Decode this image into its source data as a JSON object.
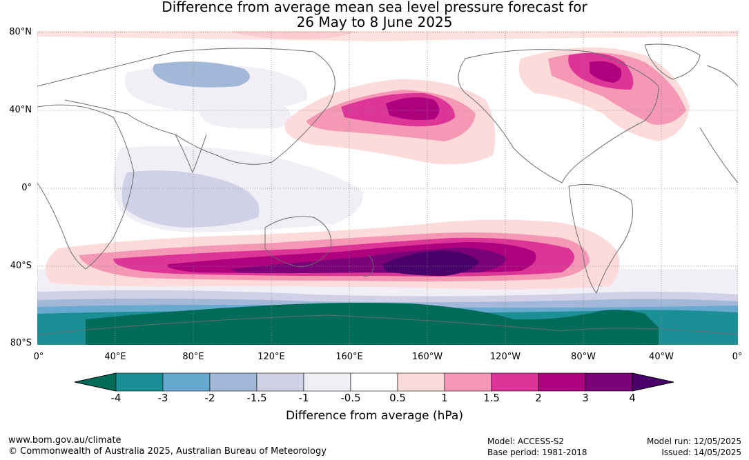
{
  "title": {
    "line1": "Difference from average mean sea level pressure forecast for",
    "line2": "26 May to 8 June 2025"
  },
  "map": {
    "lat_labels": [
      "80°N",
      "40°N",
      "0°",
      "40°S",
      "80°S"
    ],
    "lon_labels": [
      "0°",
      "40°E",
      "80°E",
      "120°E",
      "160°E",
      "160°W",
      "120°W",
      "80°W",
      "40°W",
      "0°"
    ]
  },
  "colorbar": {
    "title": "Difference from average (hPa)",
    "tick_labels": [
      "-4",
      "-3",
      "-2",
      "-1.5",
      "-1",
      "-0.5",
      "0.5",
      "1",
      "1.5",
      "2",
      "3",
      "4"
    ],
    "colors": [
      "#006b58",
      "#1b8f96",
      "#67a9cf",
      "#a3b8d8",
      "#d0d1e6",
      "#f1eef6",
      "#ffffff",
      "#fddbdb",
      "#f598b5",
      "#dd3497",
      "#ae017e",
      "#7a0177",
      "#49006a"
    ]
  },
  "footer": {
    "website": "www.bom.gov.au/climate",
    "copyright": "© Commonwealth of Australia 2025, Australian Bureau of Meteorology",
    "model": "Model: ACCESS-S2",
    "base_period": "Base period: 1981-2018",
    "model_run": "Model run: 12/05/2025",
    "issued": "Issued: 14/05/2025"
  }
}
